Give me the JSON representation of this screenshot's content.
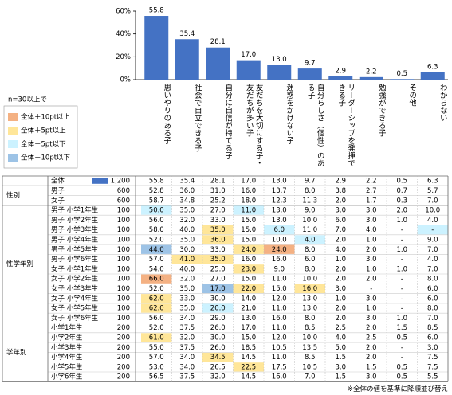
{
  "chart_data": {
    "type": "bar",
    "categories": [
      "思いやりのある子",
      "社会で自立できる子",
      "自分に自信が持てる子",
      "友だちを大切にする子・友だちが多い子",
      "迷惑をかけない子",
      "自分らしさ（個性）のある子",
      "リーダーシップを発揮できる子",
      "勉強ができる子",
      "その他",
      "わからない"
    ],
    "values": [
      55.8,
      35.4,
      28.1,
      17.0,
      13.0,
      9.7,
      2.9,
      2.2,
      0.5,
      6.3
    ],
    "value_labels": [
      "55.8",
      "35.4",
      "28.1",
      "17.0",
      "13.0",
      "9.7",
      "2.9",
      "2.2",
      "0.5",
      "6.3"
    ],
    "color": "#4472c4",
    "ylim": [
      0,
      60
    ],
    "yticks": [
      {
        "value": 0,
        "label": "0%"
      },
      {
        "value": 20,
        "label": "20%"
      },
      {
        "value": 40,
        "label": "40%"
      },
      {
        "value": 60,
        "label": "60%"
      }
    ]
  },
  "table": {
    "legend_title": "n=30以上で",
    "legend": [
      {
        "label": "全体＋10pt以上",
        "color": "#f4b183"
      },
      {
        "label": "全体＋5pt以上",
        "color": "#ffe699"
      },
      {
        "label": "全体－5pt以下",
        "color": "#ccf2ff"
      },
      {
        "label": "全体－10pt以下",
        "color": "#9dc3e6"
      }
    ],
    "total": {
      "label": "全体",
      "n": "1,200",
      "values": [
        "55.8",
        "35.4",
        "28.1",
        "17.0",
        "13.0",
        "9.7",
        "2.9",
        "2.2",
        "0.5",
        "6.3"
      ]
    },
    "groups": [
      {
        "name": "性別",
        "rows": [
          {
            "label": "男子",
            "n": "600",
            "values": [
              "52.8",
              "36.0",
              "31.0",
              "16.0",
              "13.7",
              "8.0",
              "3.8",
              "2.7",
              "0.7",
              "5.7"
            ]
          },
          {
            "label": "女子",
            "n": "600",
            "values": [
              "58.7",
              "34.8",
              "25.2",
              "18.0",
              "12.3",
              "11.3",
              "2.0",
              "1.7",
              "0.3",
              "7.0"
            ]
          }
        ]
      },
      {
        "name": "性学年別",
        "rows": [
          {
            "label": "男子 小学1年生",
            "n": "100",
            "values": [
              "50.0",
              "35.0",
              "27.0",
              "11.0",
              "13.0",
              "9.0",
              "3.0",
              "3.0",
              "2.0",
              "10.0"
            ],
            "fill": [
              2,
              null,
              null,
              2,
              null,
              null,
              null,
              null,
              null,
              null
            ]
          },
          {
            "label": "男子 小学2年生",
            "n": "100",
            "values": [
              "56.0",
              "32.0",
              "33.0",
              "15.0",
              "13.0",
              "10.0",
              "6.0",
              "3.0",
              "1.0",
              "4.0"
            ]
          },
          {
            "label": "男子 小学3年生",
            "n": "100",
            "values": [
              "58.0",
              "40.0",
              "35.0",
              "15.0",
              "6.0",
              "11.0",
              "7.0",
              "4.0",
              "-",
              "-"
            ],
            "fill": [
              null,
              null,
              1,
              null,
              2,
              null,
              null,
              null,
              null,
              2
            ]
          },
          {
            "label": "男子 小学4年生",
            "n": "100",
            "values": [
              "52.0",
              "35.0",
              "36.0",
              "15.0",
              "10.0",
              "4.0",
              "2.0",
              "1.0",
              "-",
              "9.0"
            ],
            "fill": [
              null,
              null,
              1,
              null,
              null,
              2,
              null,
              null,
              null,
              null
            ]
          },
          {
            "label": "男子 小学5年生",
            "n": "100",
            "values": [
              "44.0",
              "30.0",
              "33.0",
              "24.0",
              "24.0",
              "8.0",
              "4.0",
              "2.0",
              "1.0",
              "7.0"
            ],
            "fill": [
              3,
              null,
              null,
              1,
              0,
              null,
              null,
              null,
              null,
              null
            ]
          },
          {
            "label": "男子 小学6年生",
            "n": "100",
            "values": [
              "57.0",
              "41.0",
              "35.0",
              "16.0",
              "16.0",
              "6.0",
              "1.0",
              "3.0",
              "-",
              "4.0"
            ],
            "fill": [
              null,
              1,
              1,
              null,
              null,
              null,
              null,
              null,
              null,
              null
            ]
          },
          {
            "label": "女子 小学1年生",
            "n": "100",
            "values": [
              "54.0",
              "40.0",
              "25.0",
              "23.0",
              "9.0",
              "8.0",
              "2.0",
              "1.0",
              "1.0",
              "7.0"
            ],
            "fill": [
              null,
              null,
              null,
              1,
              null,
              null,
              null,
              null,
              null,
              null
            ]
          },
          {
            "label": "女子 小学2年生",
            "n": "100",
            "values": [
              "66.0",
              "32.0",
              "27.0",
              "15.0",
              "11.0",
              "10.0",
              "2.0",
              "2.0",
              "-",
              "8.0"
            ],
            "fill": [
              0,
              null,
              null,
              null,
              null,
              null,
              null,
              null,
              null,
              null
            ]
          },
          {
            "label": "女子 小学3年生",
            "n": "100",
            "values": [
              "52.0",
              "35.0",
              "17.0",
              "22.0",
              "15.0",
              "16.0",
              "3.0",
              "-",
              "-",
              "6.0"
            ],
            "fill": [
              null,
              null,
              3,
              1,
              null,
              1,
              null,
              null,
              null,
              null
            ]
          },
          {
            "label": "女子 小学4年生",
            "n": "100",
            "values": [
              "62.0",
              "33.0",
              "30.0",
              "14.0",
              "12.0",
              "13.0",
              "1.0",
              "3.0",
              "-",
              "6.0"
            ],
            "fill": [
              1,
              null,
              null,
              null,
              null,
              null,
              null,
              null,
              null,
              null
            ]
          },
          {
            "label": "女子 小学5年生",
            "n": "100",
            "values": [
              "62.0",
              "35.0",
              "20.0",
              "21.0",
              "11.0",
              "13.0",
              "2.0",
              "1.0",
              "-",
              "8.0"
            ],
            "fill": [
              1,
              null,
              2,
              null,
              null,
              null,
              null,
              null,
              null,
              null
            ]
          },
          {
            "label": "女子 小学6年生",
            "n": "100",
            "values": [
              "56.0",
              "34.0",
              "29.0",
              "13.0",
              "16.0",
              "8.0",
              "2.0",
              "3.0",
              "1.0",
              "7.0"
            ]
          }
        ]
      },
      {
        "name": "学年別",
        "rows": [
          {
            "label": "小学1年生",
            "n": "200",
            "values": [
              "52.0",
              "37.5",
              "26.0",
              "17.0",
              "11.0",
              "8.5",
              "2.5",
              "2.0",
              "1.5",
              "8.5"
            ]
          },
          {
            "label": "小学2年生",
            "n": "200",
            "values": [
              "61.0",
              "32.0",
              "30.0",
              "15.0",
              "12.0",
              "10.0",
              "4.0",
              "2.5",
              "0.5",
              "6.0"
            ],
            "fill": [
              1,
              null,
              null,
              null,
              null,
              null,
              null,
              null,
              null,
              null
            ]
          },
          {
            "label": "小学3年生",
            "n": "200",
            "values": [
              "55.0",
              "37.5",
              "26.0",
              "18.5",
              "10.5",
              "13.5",
              "5.0",
              "2.0",
              "-",
              "3.0"
            ]
          },
          {
            "label": "小学4年生",
            "n": "200",
            "values": [
              "57.0",
              "34.0",
              "34.5",
              "14.5",
              "11.0",
              "8.5",
              "1.5",
              "2.0",
              "-",
              "7.5"
            ],
            "fill": [
              null,
              null,
              1,
              null,
              null,
              null,
              null,
              null,
              null,
              null
            ]
          },
          {
            "label": "小学5年生",
            "n": "200",
            "values": [
              "53.0",
              "34.0",
              "26.5",
              "22.5",
              "17.5",
              "10.5",
              "3.0",
              "1.5",
              "0.5",
              "7.5"
            ],
            "fill": [
              null,
              null,
              null,
              1,
              null,
              null,
              null,
              null,
              null,
              null
            ]
          },
          {
            "label": "小学6年生",
            "n": "200",
            "values": [
              "56.5",
              "37.5",
              "32.0",
              "14.5",
              "16.0",
              "7.0",
              "1.5",
              "3.0",
              "0.5",
              "5.5"
            ]
          }
        ]
      }
    ],
    "note": "※全体の値を基準に降順並び替え"
  }
}
